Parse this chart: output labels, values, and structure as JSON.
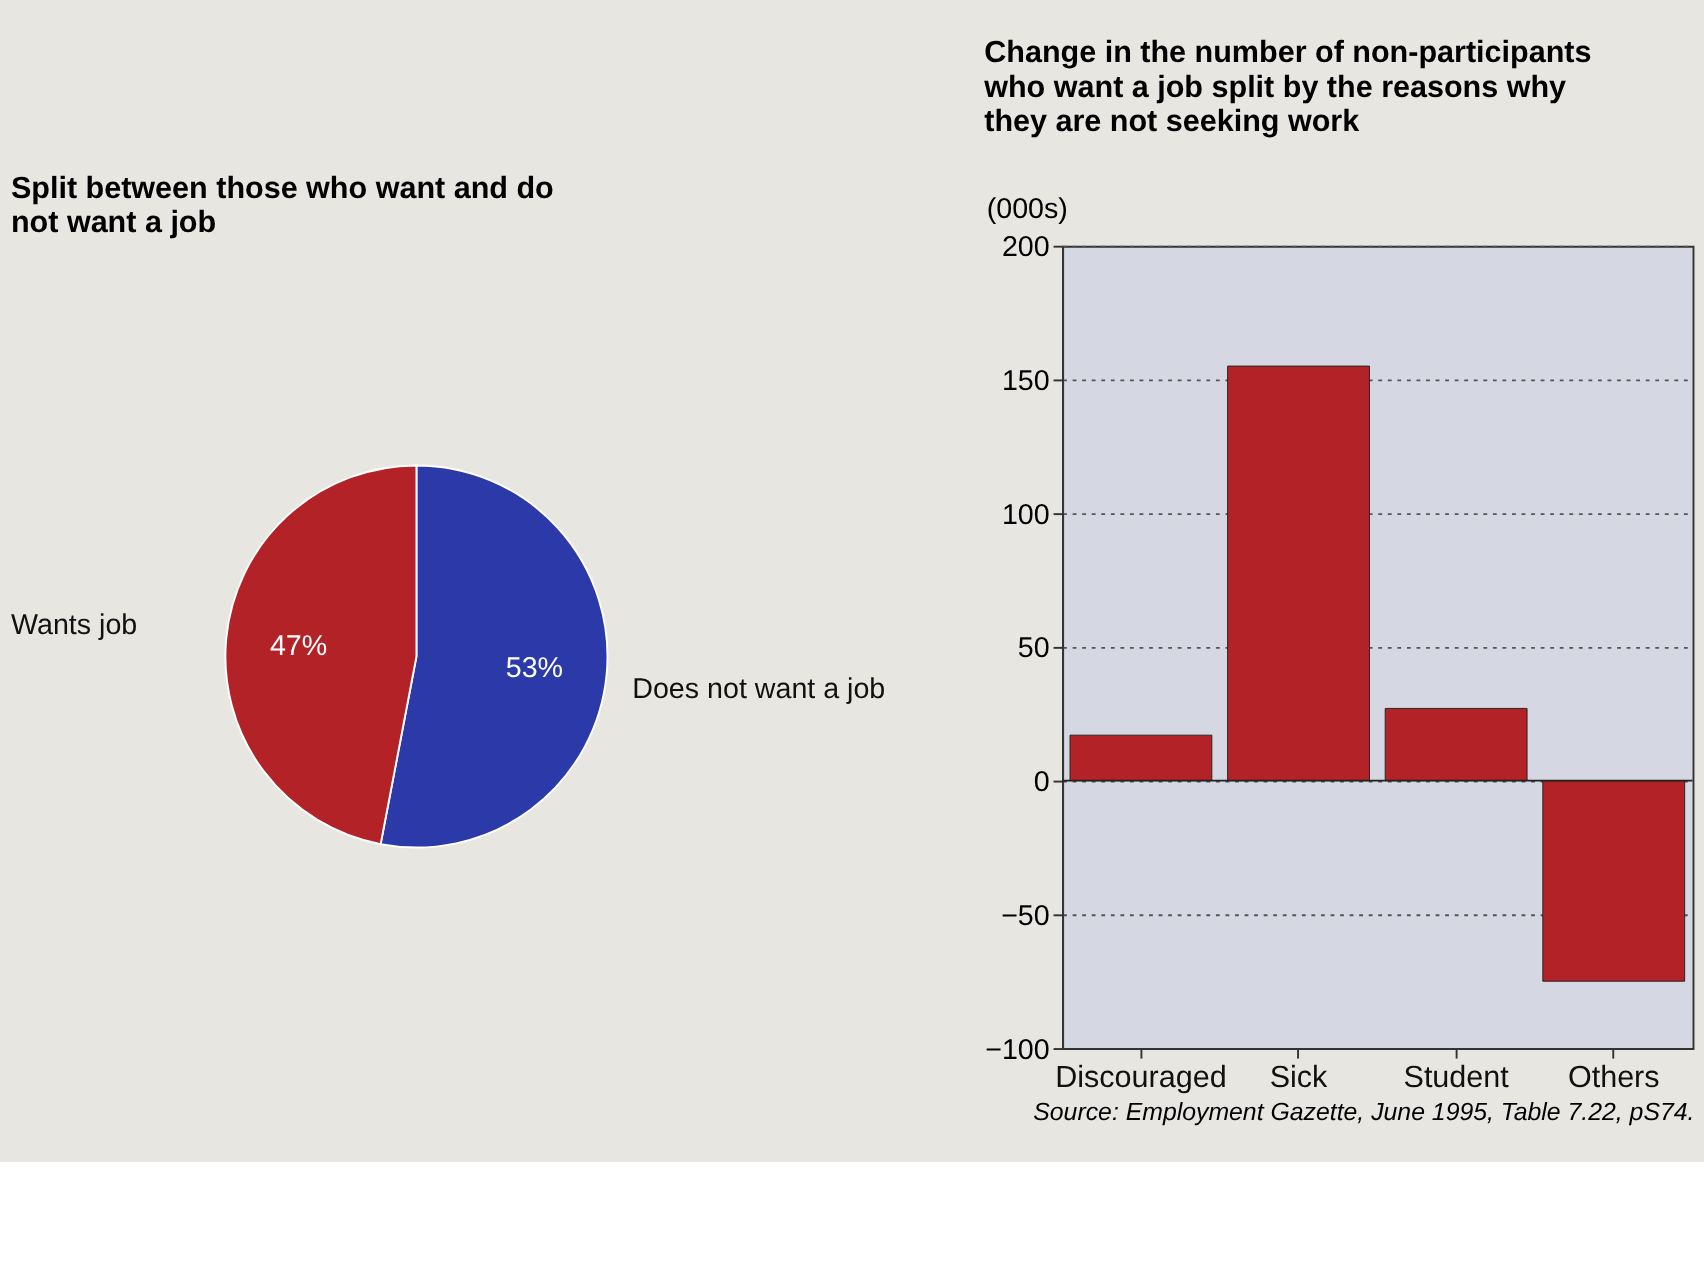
{
  "chart_data": [
    {
      "type": "pie",
      "title": "Split between those who want and do not want a job",
      "categories": [
        "Does not want a job",
        "Wants job"
      ],
      "values": [
        53,
        47
      ],
      "colors": [
        "#2b3aa8",
        "#b32226"
      ],
      "value_labels": [
        "53%",
        "47%"
      ],
      "legend": false
    },
    {
      "type": "bar",
      "title": "Change in the number of non-participants who want a job split by the reasons why they are not seeking work",
      "ylabel": "(000s)",
      "categories": [
        "Discouraged",
        "Sick",
        "Student",
        "Others"
      ],
      "values": [
        17,
        155,
        27,
        -75
      ],
      "color": "#b32226",
      "ylim": [
        -100,
        200
      ],
      "yticks": [
        -100,
        -50,
        0,
        50,
        100,
        150,
        200
      ],
      "grid": "y",
      "ref_lines": [
        {
          "axis": "y",
          "value": 0,
          "label": null
        }
      ],
      "annotations": [
        "Source: Employment Gazette, June 1995, Table 7.22, pS74."
      ]
    }
  ]
}
